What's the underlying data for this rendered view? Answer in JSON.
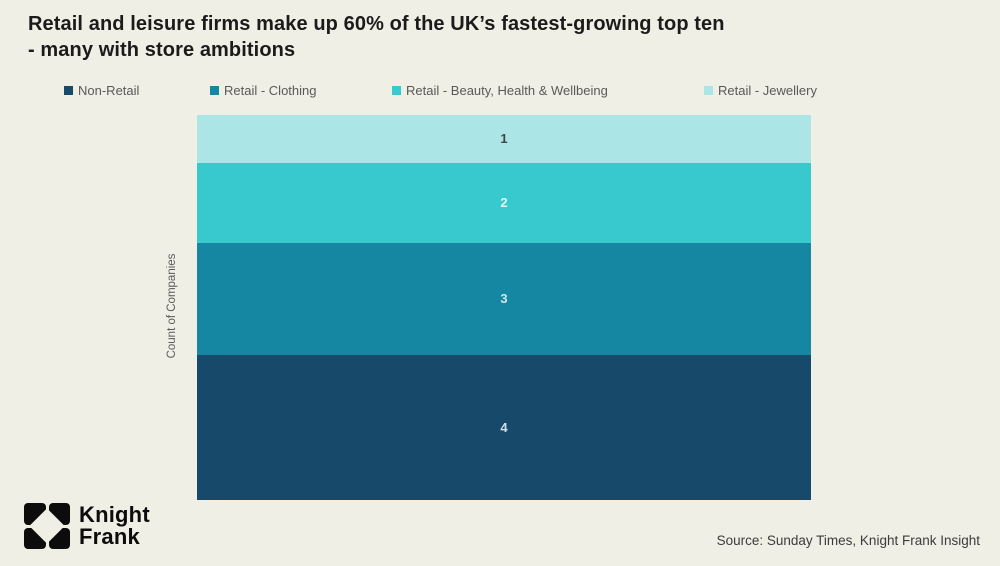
{
  "header": {
    "title_line1": "Retail and leisure firms make up 60% of the UK’s fastest-growing top ten",
    "title_line2": "- many with store ambitions"
  },
  "chart_data": {
    "type": "bar",
    "stacked": true,
    "title": "Retail and leisure firms make up 60% of the UK’s fastest-growing top ten - many with store ambitions",
    "ylabel": "Count of Companies",
    "ylim": [
      0,
      10
    ],
    "grid": false,
    "legend_position": "top",
    "series": [
      {
        "name": "Non-Retail",
        "value": 4,
        "color": "#17496b",
        "label_color": "#d4dfe6"
      },
      {
        "name": "Retail - Clothing",
        "value": 3,
        "color": "#1587a2",
        "label_color": "#cfe9ee"
      },
      {
        "name": "Retail - Beauty, Health & Wellbeing",
        "value": 2,
        "color": "#38c9ce",
        "label_color": "#e3f7f8"
      },
      {
        "name": "Retail - Jewellery",
        "value": 1,
        "color": "#ace5e5",
        "label_color": "#3f4545"
      }
    ],
    "stack_order_top_to_bottom": [
      "Retail - Jewellery",
      "Retail - Beauty, Health & Wellbeing",
      "Retail - Clothing",
      "Non-Retail"
    ],
    "segment_value_labels_top_to_bottom": [
      "1",
      "2",
      "3",
      "4"
    ]
  },
  "logo": {
    "line1": "Knight",
    "line2": "Frank"
  },
  "source": {
    "text": "Source: Sunday Times, Knight Frank Insight"
  },
  "colors": {
    "background": "#f0efe5",
    "title_text": "#1b1b1b",
    "legend_text": "#595959",
    "axis_text": "#595959",
    "source_text": "#3c3c3c",
    "logo_black": "#0c0c0c"
  }
}
